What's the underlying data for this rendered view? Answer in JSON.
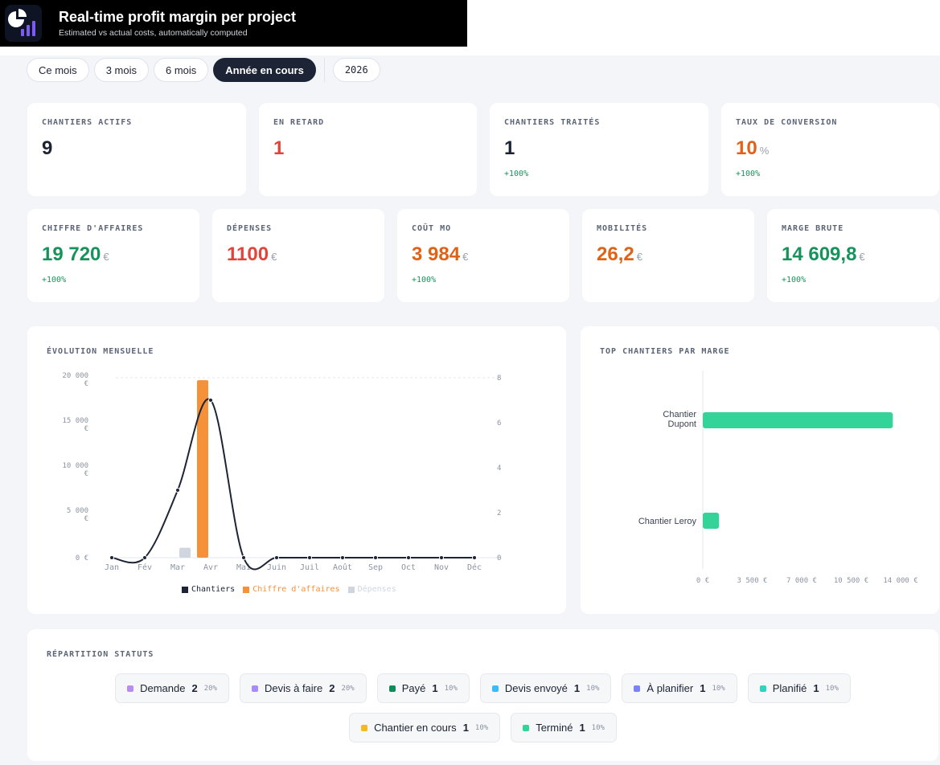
{
  "banner": {
    "title": "Real-time profit margin per project",
    "subtitle": "Estimated vs actual costs, automatically computed"
  },
  "filters": {
    "periods": [
      "Ce mois",
      "3 mois",
      "6 mois",
      "Année en cours"
    ],
    "active": "Année en cours",
    "year": "2026"
  },
  "kpis_top": [
    {
      "label": "CHANTIERS ACTIFS",
      "value": "9",
      "unit": "",
      "delta": "",
      "color": "#1c2333"
    },
    {
      "label": "EN RETARD",
      "value": "1",
      "unit": "",
      "delta": "",
      "color": "#e0443a"
    },
    {
      "label": "CHANTIERS TRAITÉS",
      "value": "1",
      "unit": "",
      "delta": "+100%",
      "color": "#1c2333"
    },
    {
      "label": "TAUX DE CONVERSION",
      "value": "10",
      "unit": "%",
      "delta": "+100%",
      "color": "#e06216"
    }
  ],
  "kpis_bottom": [
    {
      "label": "CHIFFRE D'AFFAIRES",
      "value": "19 720",
      "unit": "€",
      "delta": "+100%",
      "color": "#16935a"
    },
    {
      "label": "DÉPENSES",
      "value": "1100",
      "unit": "€",
      "delta": "",
      "color": "#e0443a"
    },
    {
      "label": "COÛT MO",
      "value": "3 984",
      "unit": "€",
      "delta": "+100%",
      "color": "#e06216"
    },
    {
      "label": "MOBILITÉS",
      "value": "26,2",
      "unit": "€",
      "delta": "",
      "color": "#e06216"
    },
    {
      "label": "MARGE BRUTE",
      "value": "14 609,8",
      "unit": "€",
      "delta": "+100%",
      "color": "#16935a"
    }
  ],
  "evolution": {
    "title": "ÉVOLUTION MENSUELLE",
    "legend": [
      {
        "label": "Chantiers",
        "color": "#1c2435"
      },
      {
        "label": "Chiffre d'affaires",
        "color": "#f59139"
      },
      {
        "label": "Dépenses",
        "color": "#cfd6e0"
      }
    ]
  },
  "top_margin": {
    "title": "TOP CHANTIERS PAR MARGE"
  },
  "statuses": {
    "title": "RÉPARTITION STATUTS",
    "items": [
      {
        "label": "Demande",
        "count": "2",
        "pct": "20%",
        "color": "#b98cf0"
      },
      {
        "label": "Devis à faire",
        "count": "2",
        "pct": "20%",
        "color": "#a78bfa"
      },
      {
        "label": "Payé",
        "count": "1",
        "pct": "10%",
        "color": "#138a5a"
      },
      {
        "label": "Devis envoyé",
        "count": "1",
        "pct": "10%",
        "color": "#38bdf8"
      },
      {
        "label": "À planifier",
        "count": "1",
        "pct": "10%",
        "color": "#7c83f0"
      },
      {
        "label": "Planifié",
        "count": "1",
        "pct": "10%",
        "color": "#2dd4bf"
      },
      {
        "label": "Chantier en cours",
        "count": "1",
        "pct": "10%",
        "color": "#f6b81c"
      },
      {
        "label": "Terminé",
        "count": "1",
        "pct": "10%",
        "color": "#34d399"
      }
    ]
  },
  "chart_data": [
    {
      "type": "bar",
      "title": "ÉVOLUTION MENSUELLE",
      "categories": [
        "Jan",
        "Fév",
        "Mar",
        "Avr",
        "Mai",
        "Juin",
        "Juil",
        "Août",
        "Sep",
        "Oct",
        "Nov",
        "Déc"
      ],
      "series": [
        {
          "name": "Chiffre d'affaires",
          "type": "bar",
          "axis": "left",
          "color": "#f59139",
          "values": [
            0,
            0,
            0,
            19720,
            0,
            0,
            0,
            0,
            0,
            0,
            0,
            0
          ]
        },
        {
          "name": "Dépenses",
          "type": "bar",
          "axis": "left",
          "color": "#cfd6e0",
          "values": [
            0,
            0,
            1100,
            0,
            0,
            0,
            0,
            0,
            0,
            0,
            0,
            0
          ]
        },
        {
          "name": "Chantiers",
          "type": "line",
          "axis": "right",
          "color": "#1c2435",
          "values": [
            0,
            0,
            3,
            7,
            0,
            0,
            0,
            0,
            0,
            0,
            0,
            0
          ]
        }
      ],
      "ylim": [
        0,
        20000
      ],
      "y2lim": [
        0,
        8
      ],
      "yticks": [
        "0 €",
        "5 000 €",
        "10 000 €",
        "15 000 €",
        "20 000 €"
      ],
      "yticks_values": [
        0,
        5000,
        10000,
        15000,
        20000
      ],
      "y2ticks": [
        "0",
        "2",
        "4",
        "6",
        "8"
      ],
      "y2ticks_values": [
        0,
        2,
        4,
        6,
        8
      ],
      "grid": "top-line"
    },
    {
      "type": "bar",
      "orientation": "horizontal",
      "title": "TOP CHANTIERS PAR MARGE",
      "categories": [
        "Chantier Dupont",
        "Chantier Leroy"
      ],
      "values": [
        13450,
        1150
      ],
      "color": "#34d399",
      "xlim": [
        0,
        14000
      ],
      "xticks": [
        "0 €",
        "3 500 €",
        "7 000 €",
        "10 500 €",
        "14 000 €"
      ],
      "xticks_values": [
        0,
        3500,
        7000,
        10500,
        14000
      ]
    }
  ]
}
